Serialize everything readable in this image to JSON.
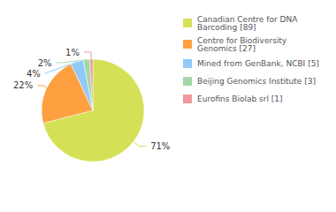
{
  "chart_data": {
    "type": "pie",
    "categories": [
      "Canadian Centre for DNA\nBarcoding [89]",
      "Centre for Biodiversity\nGenomics [27]",
      "Mined from GenBank, NCBI [5]",
      "Beijing Genomics Institute [3]",
      "Eurofins Biolab srl [1]"
    ],
    "values": [
      71,
      22,
      4,
      2,
      1
    ],
    "value_labels": [
      "71%",
      "22%",
      "4%",
      "2%",
      "1%"
    ],
    "colors": [
      "#d4e157",
      "#ffa040",
      "#90caf9",
      "#a5d6a7",
      "#ef9a9a"
    ],
    "data_labels": true,
    "legend": "right"
  }
}
